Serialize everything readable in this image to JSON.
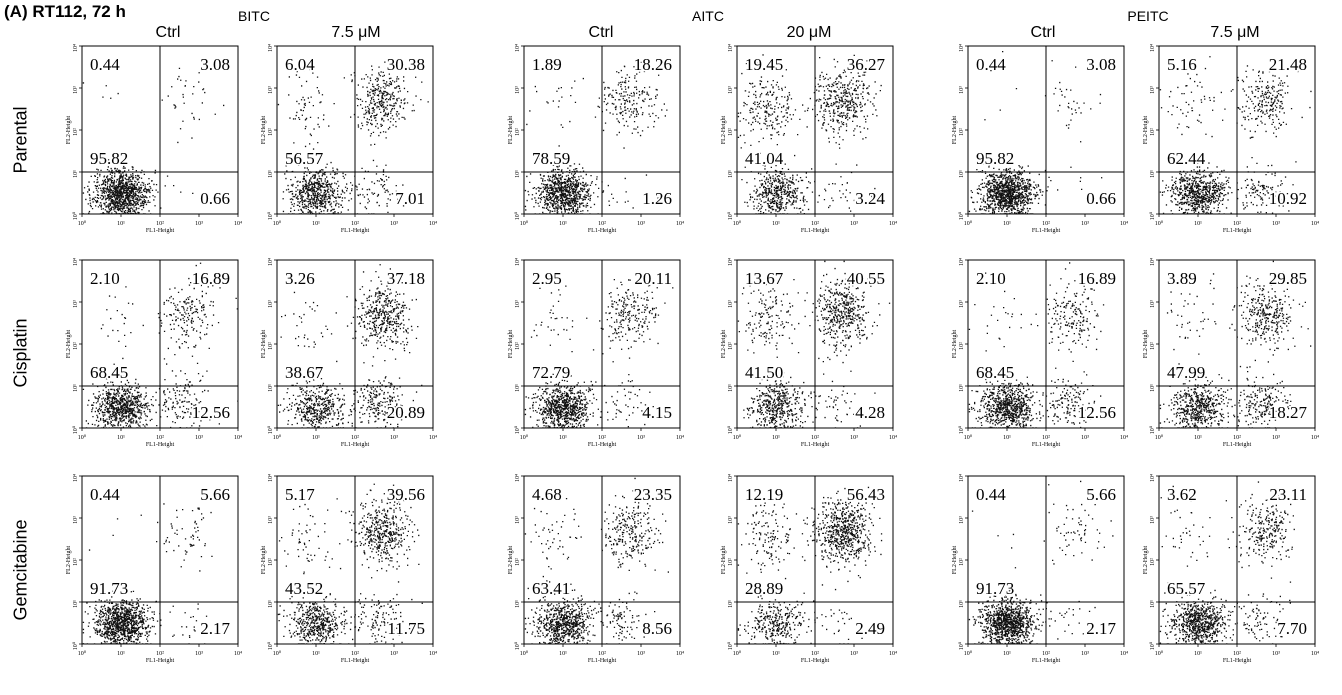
{
  "figure": {
    "title": "(A) RT112, 72 h",
    "compounds": [
      "BITC",
      "AITC",
      "PEITC"
    ],
    "column_headers": [
      "Ctrl",
      "7.5 μM",
      "Ctrl",
      "20 μM",
      "Ctrl",
      "7.5 μM"
    ],
    "row_labels": [
      "Parental",
      "Cisplatin",
      "Gemcitabine"
    ],
    "axis": {
      "x_label": "FL1-Height",
      "y_label": "FL2-Height",
      "tick_labels": [
        "10⁰",
        "10¹",
        "10²",
        "10³",
        "10⁴"
      ]
    }
  },
  "chart_data": {
    "type": "scatter",
    "description_kind": "flow cytometry quadrant dot plots (percentage of cells per quadrant)",
    "x_axis": {
      "label": "FL1-Height",
      "scale": "log",
      "range": [
        1,
        10000
      ]
    },
    "y_axis": {
      "label": "FL2-Height",
      "scale": "log",
      "range": [
        1,
        10000
      ]
    },
    "quadrant_order": [
      "upper-left",
      "upper-right",
      "lower-left",
      "lower-right"
    ],
    "panels": [
      {
        "row": "Parental",
        "compound": "BITC",
        "condition": "Ctrl",
        "quadrants": [
          "0.44",
          "3.08",
          "95.82",
          "0.66"
        ]
      },
      {
        "row": "Parental",
        "compound": "BITC",
        "condition": "7.5 μM",
        "quadrants": [
          "6.04",
          "30.38",
          "56.57",
          "7.01"
        ]
      },
      {
        "row": "Parental",
        "compound": "AITC",
        "condition": "Ctrl",
        "quadrants": [
          "1.89",
          "18.26",
          "78.59",
          "1.26"
        ]
      },
      {
        "row": "Parental",
        "compound": "AITC",
        "condition": "20 μM",
        "quadrants": [
          "19.45",
          "36.27",
          "41.04",
          "3.24"
        ]
      },
      {
        "row": "Parental",
        "compound": "PEITC",
        "condition": "Ctrl",
        "quadrants": [
          "0.44",
          "3.08",
          "95.82",
          "0.66"
        ]
      },
      {
        "row": "Parental",
        "compound": "PEITC",
        "condition": "7.5 μM",
        "quadrants": [
          "5.16",
          "21.48",
          "62.44",
          "10.92"
        ]
      },
      {
        "row": "Cisplatin",
        "compound": "BITC",
        "condition": "Ctrl",
        "quadrants": [
          "2.10",
          "16.89",
          "68.45",
          "12.56"
        ]
      },
      {
        "row": "Cisplatin",
        "compound": "BITC",
        "condition": "7.5 μM",
        "quadrants": [
          "3.26",
          "37.18",
          "38.67",
          "20.89"
        ]
      },
      {
        "row": "Cisplatin",
        "compound": "AITC",
        "condition": "Ctrl",
        "quadrants": [
          "2.95",
          "20.11",
          "72.79",
          "4.15"
        ]
      },
      {
        "row": "Cisplatin",
        "compound": "AITC",
        "condition": "20 μM",
        "quadrants": [
          "13.67",
          "40.55",
          "41.50",
          "4.28"
        ]
      },
      {
        "row": "Cisplatin",
        "compound": "PEITC",
        "condition": "Ctrl",
        "quadrants": [
          "2.10",
          "16.89",
          "68.45",
          "12.56"
        ]
      },
      {
        "row": "Cisplatin",
        "compound": "PEITC",
        "condition": "7.5 μM",
        "quadrants": [
          "3.89",
          "29.85",
          "47.99",
          "18.27"
        ]
      },
      {
        "row": "Gemcitabine",
        "compound": "BITC",
        "condition": "Ctrl",
        "quadrants": [
          "0.44",
          "5.66",
          "91.73",
          "2.17"
        ]
      },
      {
        "row": "Gemcitabine",
        "compound": "BITC",
        "condition": "7.5 μM",
        "quadrants": [
          "5.17",
          "39.56",
          "43.52",
          "11.75"
        ]
      },
      {
        "row": "Gemcitabine",
        "compound": "AITC",
        "condition": "Ctrl",
        "quadrants": [
          "4.68",
          "23.35",
          "63.41",
          "8.56"
        ]
      },
      {
        "row": "Gemcitabine",
        "compound": "AITC",
        "condition": "20 μM",
        "quadrants": [
          "12.19",
          "56.43",
          "28.89",
          "2.49"
        ]
      },
      {
        "row": "Gemcitabine",
        "compound": "PEITC",
        "condition": "Ctrl",
        "quadrants": [
          "0.44",
          "5.66",
          "91.73",
          "2.17"
        ]
      },
      {
        "row": "Gemcitabine",
        "compound": "PEITC",
        "condition": "7.5 μM",
        "quadrants": [
          "3.62",
          "23.11",
          "65.57",
          "7.70"
        ]
      }
    ]
  }
}
